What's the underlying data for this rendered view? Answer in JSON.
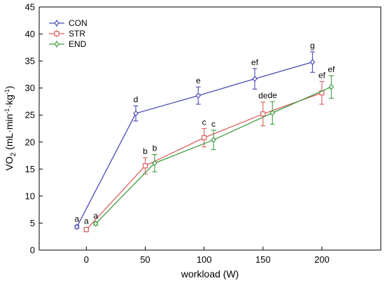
{
  "chart_data": {
    "type": "line",
    "xlabel": "workload (W)",
    "ylabel": "VO2 (mL·min-1·kg-1)",
    "ylabel_parts": {
      "pre": "VO",
      "sub": "2",
      "mid1": " (mL·min",
      "sup1": "-1",
      "mid2": "·kg",
      "sup2": "-1",
      "post": ")"
    },
    "xlim": [
      -40,
      250
    ],
    "ylim": [
      0,
      45
    ],
    "x_ticks": [
      0,
      50,
      100,
      150,
      200
    ],
    "y_ticks": [
      0,
      5,
      10,
      15,
      20,
      25,
      30,
      35,
      40,
      45
    ],
    "grid": false,
    "legend_position": "top-left",
    "series": [
      {
        "name": "CON",
        "color": "#4a4ab5",
        "marker": "diamond",
        "x": [
          -8,
          42,
          95,
          143,
          192
        ],
        "y": [
          4.3,
          25.3,
          28.6,
          31.7,
          34.8
        ],
        "error": [
          0.3,
          1.4,
          1.6,
          1.9,
          1.9
        ],
        "labels": [
          "a",
          "d",
          "e",
          "ef",
          "g"
        ]
      },
      {
        "name": "STR",
        "color": "#d95f5f",
        "marker": "square",
        "x": [
          0,
          50,
          100,
          150,
          200
        ],
        "y": [
          3.8,
          15.6,
          20.8,
          25.2,
          29.1
        ],
        "error": [
          0.4,
          1.5,
          1.7,
          2.2,
          2.1
        ],
        "labels": [
          "a",
          "b",
          "c",
          "de",
          "ef"
        ]
      },
      {
        "name": "END",
        "color": "#3f9a3f",
        "marker": "diamond",
        "x": [
          8,
          58,
          108,
          158,
          208
        ],
        "y": [
          4.9,
          16.1,
          20.4,
          25.4,
          30.2
        ],
        "error": [
          0.3,
          1.6,
          1.8,
          2.1,
          2.1
        ],
        "labels": [
          "a",
          "b",
          "c",
          "de",
          "ef"
        ]
      }
    ]
  }
}
